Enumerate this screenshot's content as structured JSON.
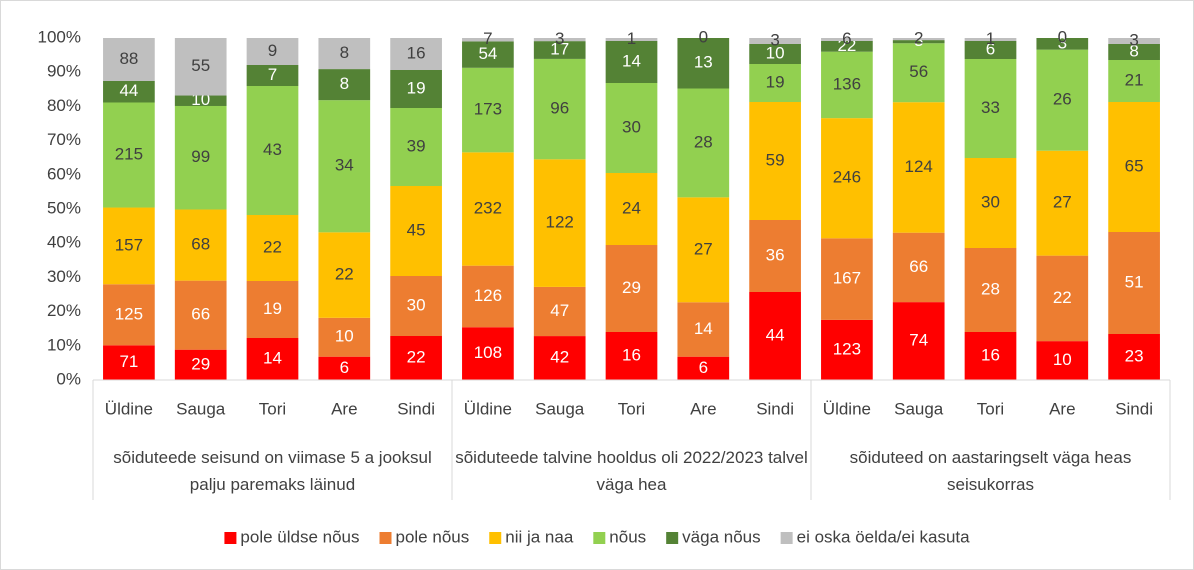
{
  "chart_data": {
    "type": "bar",
    "stacking": "percent",
    "groups": [
      {
        "label": "sõiduteede seisund on viimase 5 a jooksul palju paremaks läinud",
        "categories": [
          "Üldine",
          "Sauga",
          "Tori",
          "Are",
          "Sindi"
        ]
      },
      {
        "label": "sõiduteede talvine hooldus oli 2022/2023 talvel väga hea",
        "categories": [
          "Üldine",
          "Sauga",
          "Tori",
          "Are",
          "Sindi"
        ]
      },
      {
        "label": "sõiduteed on aastaringselt väga heas seisukorras",
        "categories": [
          "Üldine",
          "Sauga",
          "Tori",
          "Are",
          "Sindi"
        ]
      }
    ],
    "series": [
      {
        "name": "pole üldse nõus",
        "color": "#ff0000",
        "label_color": "#ffffff",
        "values": [
          71,
          29,
          14,
          6,
          22,
          108,
          42,
          16,
          6,
          44,
          123,
          74,
          16,
          10,
          23
        ]
      },
      {
        "name": "pole nõus",
        "color": "#ed7d31",
        "label_color": "#ffffff",
        "values": [
          125,
          66,
          19,
          10,
          30,
          126,
          47,
          29,
          14,
          36,
          167,
          66,
          28,
          22,
          51
        ]
      },
      {
        "name": "nii ja naa",
        "color": "#ffc000",
        "label_color": "#404040",
        "values": [
          157,
          68,
          22,
          22,
          45,
          232,
          122,
          24,
          27,
          59,
          246,
          124,
          30,
          27,
          65
        ]
      },
      {
        "name": "nõus",
        "color": "#92d050",
        "label_color": "#404040",
        "values": [
          215,
          99,
          43,
          34,
          39,
          173,
          96,
          30,
          28,
          19,
          136,
          56,
          33,
          26,
          21
        ]
      },
      {
        "name": "väga nõus",
        "color": "#548235",
        "label_color": "#ffffff",
        "values": [
          44,
          10,
          7,
          8,
          19,
          54,
          17,
          14,
          13,
          10,
          22,
          3,
          6,
          3,
          8
        ]
      },
      {
        "name": "ei oska öelda/ei kasuta",
        "color": "#bfbfbf",
        "label_color": "#404040",
        "values": [
          88,
          55,
          9,
          8,
          16,
          7,
          3,
          1,
          0,
          3,
          6,
          2,
          1,
          0,
          3
        ]
      }
    ],
    "ylim": [
      0,
      100
    ],
    "yticks": [
      {
        "value": 0,
        "label": "0%"
      },
      {
        "value": 10,
        "label": "10%"
      },
      {
        "value": 20,
        "label": "20%"
      },
      {
        "value": 30,
        "label": "30%"
      },
      {
        "value": 40,
        "label": "40%"
      },
      {
        "value": 50,
        "label": "50%"
      },
      {
        "value": 60,
        "label": "60%"
      },
      {
        "value": 70,
        "label": "70%"
      },
      {
        "value": 80,
        "label": "80%"
      },
      {
        "value": 90,
        "label": "90%"
      },
      {
        "value": 100,
        "label": "100%"
      }
    ],
    "grid": false,
    "legend": "bottom"
  }
}
